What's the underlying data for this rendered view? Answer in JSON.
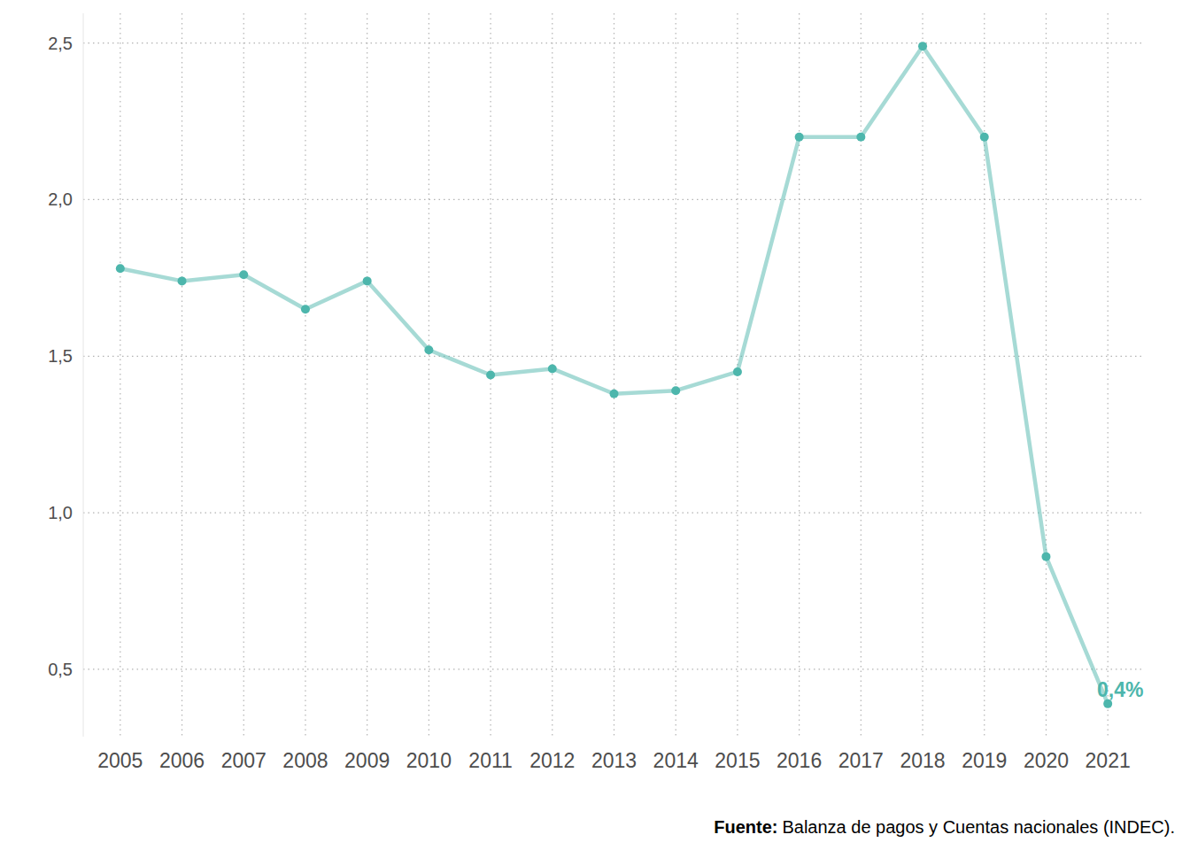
{
  "chart_data": {
    "type": "line",
    "categories": [
      "2005",
      "2006",
      "2007",
      "2008",
      "2009",
      "2010",
      "2011",
      "2012",
      "2013",
      "2014",
      "2015",
      "2016",
      "2017",
      "2018",
      "2019",
      "2020",
      "2021"
    ],
    "series": [
      {
        "name": null,
        "color": "#4db6ac",
        "marker": "circle",
        "values": [
          1.78,
          1.74,
          1.76,
          1.65,
          1.74,
          1.52,
          1.44,
          1.46,
          1.38,
          1.39,
          1.45,
          2.2,
          2.2,
          2.49,
          2.2,
          0.86,
          0.39
        ],
        "value_labels": [
          null,
          null,
          null,
          null,
          null,
          null,
          null,
          null,
          null,
          null,
          null,
          null,
          null,
          null,
          null,
          null,
          "0,4%"
        ]
      }
    ],
    "data_labels": true,
    "ylim": [
      0.285,
      2.595
    ],
    "yticks": [
      {
        "value": 0.5,
        "label": "0,5"
      },
      {
        "value": 1.0,
        "label": "1,0"
      },
      {
        "value": 1.5,
        "label": "1,5"
      },
      {
        "value": 2.0,
        "label": "2,0"
      },
      {
        "value": 2.5,
        "label": "2,5"
      }
    ],
    "grid": true,
    "source_label": "Fuente:",
    "source": "Balanza de pagos y Cuentas nacionales (INDEC)."
  }
}
